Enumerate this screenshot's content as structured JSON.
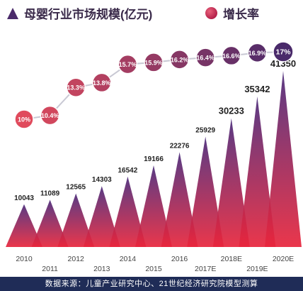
{
  "legend": {
    "market_label": "母婴行业市场规模(亿元)",
    "growth_label": "增长率"
  },
  "source_note": "数据来源：儿童产业研究中心、21世纪经济研究院模型测算",
  "colors": {
    "bar_top": "#4b2a7a",
    "bar_bottom": "#e8253c",
    "growth_early": "#e04a5c",
    "growth_late": "#4a2a6a",
    "line": "#c9c9d4",
    "source_bg": "#1f2c57"
  },
  "chart_data": {
    "type": "bar",
    "title": "",
    "xlabel": "",
    "ylabel": "",
    "categories": [
      "2010",
      "2011",
      "2012",
      "2013",
      "2014",
      "2015",
      "2016",
      "2017E",
      "2018E",
      "2019E",
      "2020E"
    ],
    "series": [
      {
        "name": "母婴行业市场规模(亿元)",
        "values": [
          10043,
          11089,
          12565,
          14303,
          16542,
          19166,
          22276,
          25929,
          30233,
          35342,
          41350
        ]
      },
      {
        "name": "增长率",
        "values": [
          10,
          10.4,
          13.3,
          13.8,
          15.7,
          15.9,
          16.2,
          16.4,
          16.6,
          16.9,
          17
        ],
        "labels": [
          "10%",
          "10.4%",
          "13.3%",
          "13.8%",
          "15.7%",
          "15.9%",
          "16.2%",
          "16.4%",
          "16.6%",
          "16.9%",
          "17%"
        ]
      }
    ],
    "legend_position": "top",
    "grid": false
  }
}
